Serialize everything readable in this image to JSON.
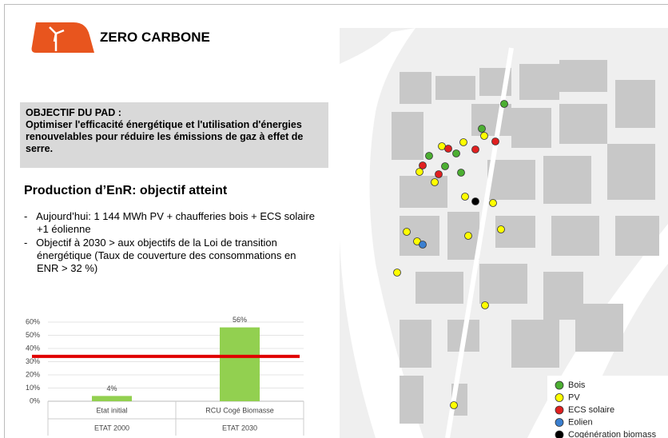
{
  "header": {
    "title": "ZERO CARBONE"
  },
  "objective": {
    "heading": "OBJECTIF DU PAD :",
    "text": "Optimiser l'efficacité énergétique et l'utilisation d'énergies renouvelables pour réduire les émissions de gaz à effet de serre."
  },
  "section": {
    "title": "Production d’EnR: objectif atteint"
  },
  "bullets": [
    "Aujourd’hui: 1 144 MWh PV + chaufferies bois + ECS solaire +1 éolienne",
    "Objectif à 2030 > aux objectifs de la Loi de transition énergétique (Taux de couverture des consommations en ENR > 32 %)"
  ],
  "chart_data": {
    "type": "bar",
    "categories": [
      "Etat initial",
      "RCU Cogé Biomasse"
    ],
    "groups": [
      "ETAT 2000",
      "ETAT 2030"
    ],
    "values": [
      4,
      56
    ],
    "value_labels": [
      "4%",
      "56%"
    ],
    "color": "#92d050",
    "reference_line": {
      "value": 34,
      "color": "#e00000"
    },
    "ylim": [
      0,
      60
    ],
    "yticks": [
      {
        "value": 0,
        "label": "0%"
      },
      {
        "value": 10,
        "label": "10%"
      },
      {
        "value": 20,
        "label": "20%"
      },
      {
        "value": 30,
        "label": "30%"
      },
      {
        "value": 40,
        "label": "40%"
      },
      {
        "value": 50,
        "label": "50%"
      },
      {
        "value": 60,
        "label": "60%"
      }
    ],
    "grid": true
  },
  "map": {
    "legend": [
      {
        "name": "Bois",
        "color": "#4caf32"
      },
      {
        "name": "PV",
        "color": "#ffff00"
      },
      {
        "name": "ECS solaire",
        "color": "#e02020"
      },
      {
        "name": "Eolien",
        "color": "#3a7fd0"
      },
      {
        "name": "Cogénération biomass",
        "color": "#000000"
      }
    ]
  }
}
